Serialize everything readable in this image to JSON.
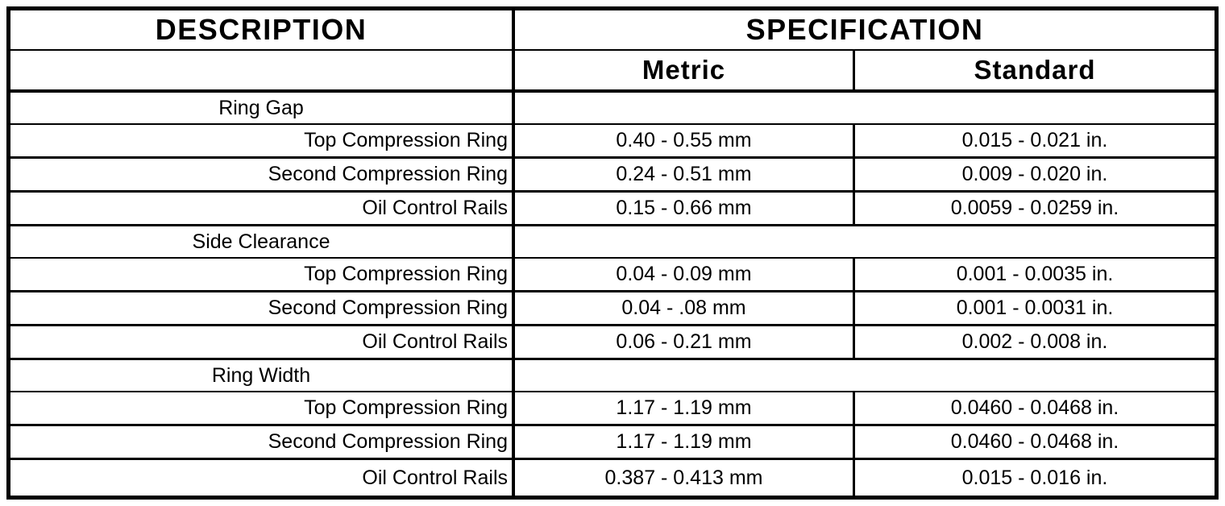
{
  "colors": {
    "border": "#000000",
    "background": "#ffffff",
    "text": "#000000"
  },
  "table": {
    "header": {
      "description": "DESCRIPTION",
      "specification": "SPECIFICATION",
      "metric": "Metric",
      "standard": "Standard"
    },
    "rows": [
      {
        "type": "section",
        "label": "Ring Gap",
        "metric": "",
        "standard": ""
      },
      {
        "type": "item",
        "label": "Top Compression Ring",
        "metric": "0.40 - 0.55 mm",
        "standard": "0.015 - 0.021 in."
      },
      {
        "type": "item",
        "label": "Second Compression Ring",
        "metric": "0.24 - 0.51 mm",
        "standard": "0.009 - 0.020 in."
      },
      {
        "type": "item",
        "label": "Oil Control Rails",
        "metric": "0.15 - 0.66 mm",
        "standard": "0.0059 - 0.0259 in."
      },
      {
        "type": "section",
        "label": "Side Clearance",
        "metric": "",
        "standard": ""
      },
      {
        "type": "item",
        "label": "Top Compression Ring",
        "metric": "0.04 - 0.09 mm",
        "standard": "0.001 - 0.0035 in."
      },
      {
        "type": "item",
        "label": "Second Compression Ring",
        "metric": "0.04 - .08 mm",
        "standard": "0.001 - 0.0031 in."
      },
      {
        "type": "item",
        "label": "Oil Control Rails",
        "metric": "0.06 - 0.21 mm",
        "standard": "0.002 - 0.008 in."
      },
      {
        "type": "section",
        "label": "Ring Width",
        "metric": "",
        "standard": ""
      },
      {
        "type": "item",
        "label": "Top Compression Ring",
        "metric": "1.17 - 1.19 mm",
        "standard": "0.0460 - 0.0468 in."
      },
      {
        "type": "item",
        "label": "Second Compression Ring",
        "metric": "1.17 - 1.19 mm",
        "standard": "0.0460 - 0.0468 in."
      },
      {
        "type": "item",
        "label": "Oil Control Rails",
        "metric": "0.387 - 0.413 mm",
        "standard": "0.015 - 0.016 in."
      }
    ]
  }
}
